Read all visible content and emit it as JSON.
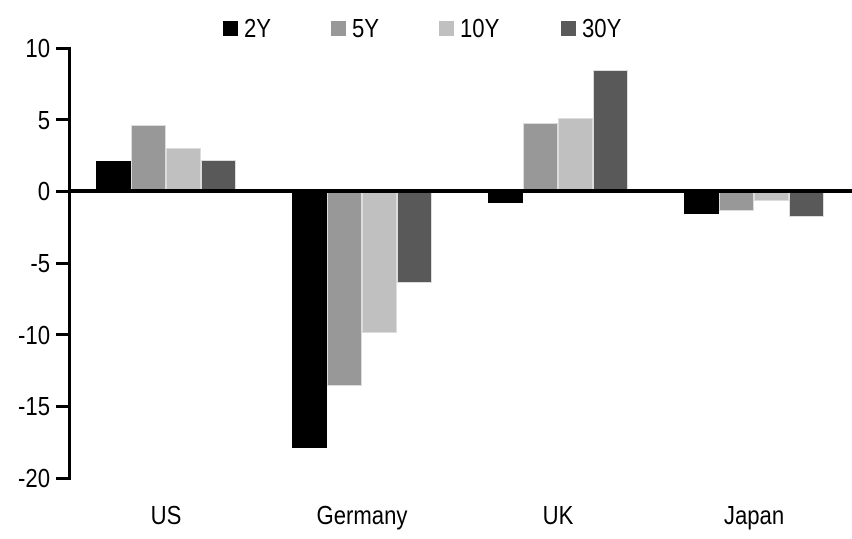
{
  "chart_data": {
    "type": "bar",
    "categories": [
      "US",
      "Germany",
      "UK",
      "Japan"
    ],
    "series": [
      {
        "name": "2Y",
        "color": "#000000",
        "border": "#000000",
        "values": [
          2.1,
          -17.9,
          -0.8,
          -1.6
        ]
      },
      {
        "name": "5Y",
        "color": "#989898",
        "border": "#dcdcdc",
        "values": [
          4.6,
          -13.6,
          4.8,
          -1.4
        ]
      },
      {
        "name": "10Y",
        "color": "#c0c0c0",
        "border": "#dcdcdc",
        "values": [
          3.0,
          -9.9,
          5.1,
          -0.7
        ]
      },
      {
        "name": "30Y",
        "color": "#595959",
        "border": "#dcdcdc",
        "values": [
          2.2,
          -6.4,
          8.5,
          -1.8
        ]
      }
    ],
    "yticks": [
      10,
      5,
      0,
      -5,
      -10,
      -15,
      -20
    ],
    "ylim": [
      -20,
      10
    ],
    "grid": false,
    "legend_position": "top",
    "axis_color": "#000000",
    "background_color": "#ffffff"
  }
}
